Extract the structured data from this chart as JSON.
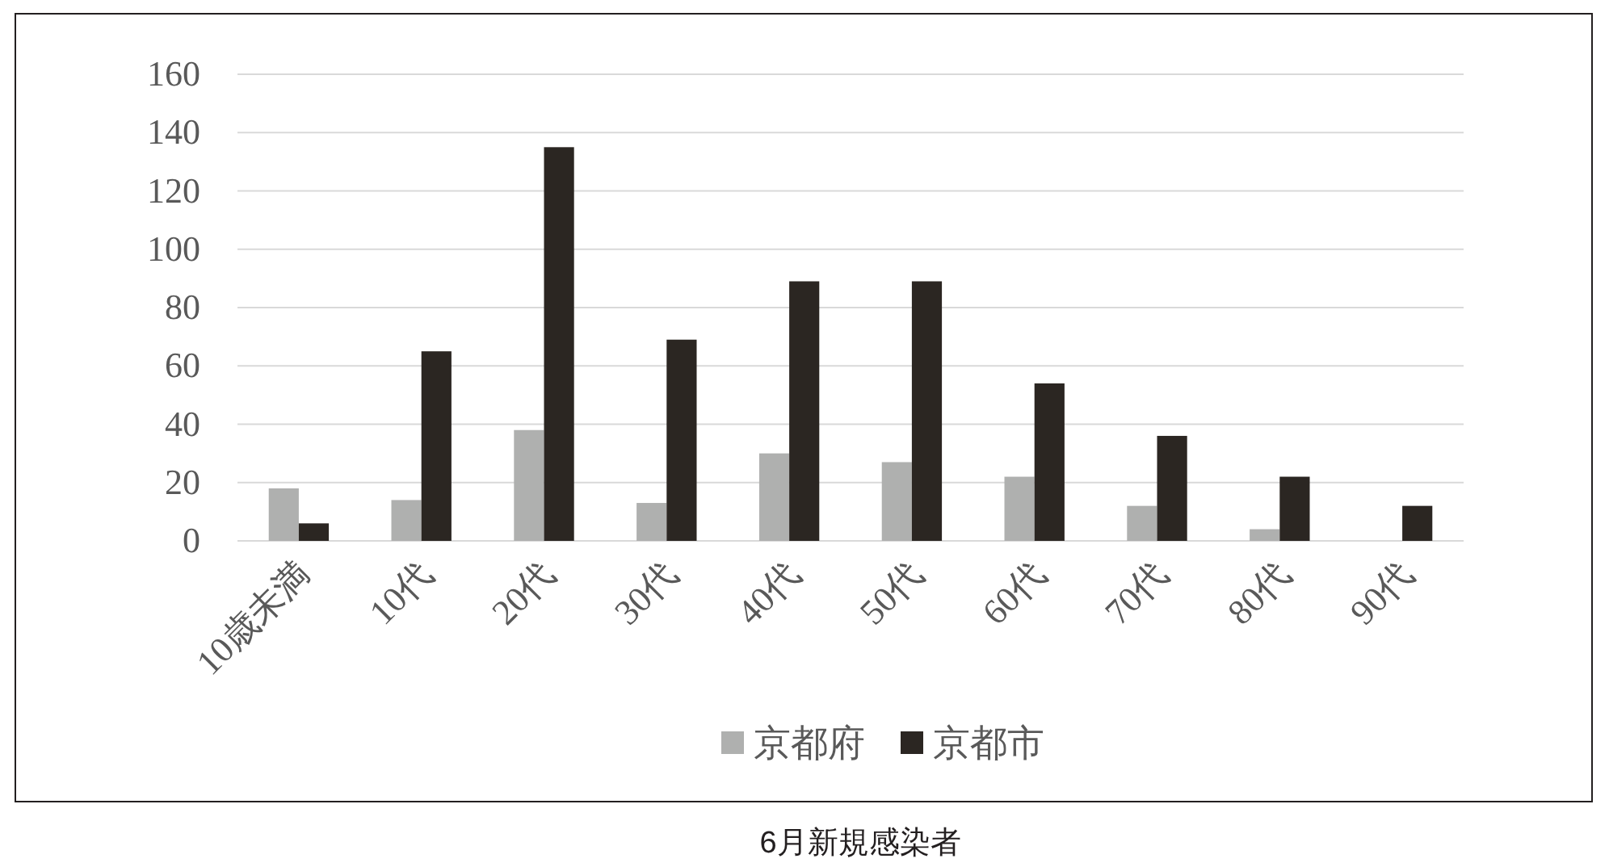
{
  "chart_data": {
    "type": "bar",
    "title": "6月新規感染者",
    "categories": [
      "10歳未満",
      "10代",
      "20代",
      "30代",
      "40代",
      "50代",
      "60代",
      "70代",
      "80代",
      "90代"
    ],
    "series": [
      {
        "name": "京都府",
        "color": "#afb0af",
        "values": [
          18,
          14,
          38,
          13,
          30,
          27,
          22,
          12,
          4,
          0
        ]
      },
      {
        "name": "京都市",
        "color": "#2b2622",
        "values": [
          6,
          65,
          135,
          69,
          89,
          89,
          54,
          36,
          22,
          12
        ]
      }
    ],
    "ylim": [
      0,
      160
    ],
    "yticks": [
      0,
      20,
      40,
      60,
      80,
      100,
      120,
      140,
      160
    ],
    "grid": "y",
    "legend": "bottom"
  }
}
